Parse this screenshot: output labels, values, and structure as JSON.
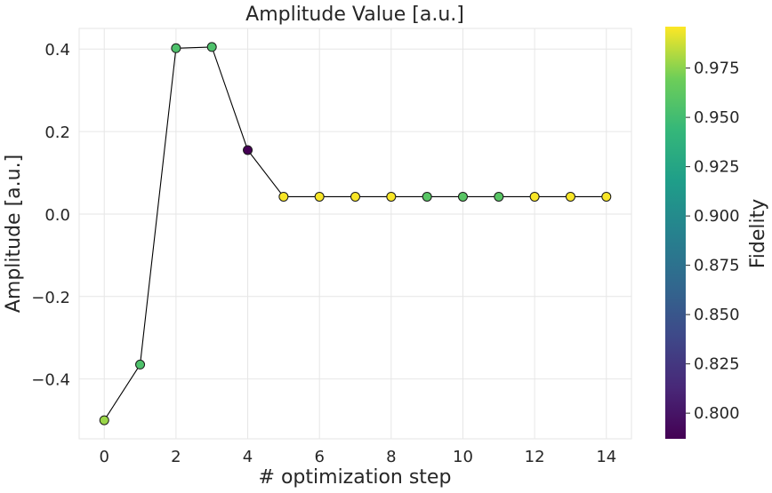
{
  "chart_data": {
    "type": "scatter",
    "title": "Amplitude Value [a.u.]",
    "xlabel": "# optimization step",
    "ylabel": "Amplitude [a.u.]",
    "xlim": [
      -0.7,
      14.7
    ],
    "ylim": [
      -0.545,
      0.45
    ],
    "xticks": [
      0,
      2,
      4,
      6,
      8,
      10,
      12,
      14
    ],
    "xtick_labels": [
      "0",
      "2",
      "4",
      "6",
      "8",
      "10",
      "12",
      "14"
    ],
    "yticks": [
      -0.4,
      -0.2,
      0.0,
      0.2,
      0.4
    ],
    "ytick_labels": [
      "−0.4",
      "−0.2",
      "0.0",
      "0.2",
      "0.4"
    ],
    "grid": true,
    "line_color": "#000000",
    "points": [
      {
        "x": 0,
        "y": -0.5,
        "fidelity": 0.978
      },
      {
        "x": 1,
        "y": -0.365,
        "fidelity": 0.955
      },
      {
        "x": 2,
        "y": 0.402,
        "fidelity": 0.955
      },
      {
        "x": 3,
        "y": 0.405,
        "fidelity": 0.955
      },
      {
        "x": 4,
        "y": 0.155,
        "fidelity": 0.787
      },
      {
        "x": 5,
        "y": 0.042,
        "fidelity": 0.995
      },
      {
        "x": 6,
        "y": 0.042,
        "fidelity": 0.995
      },
      {
        "x": 7,
        "y": 0.042,
        "fidelity": 0.995
      },
      {
        "x": 8,
        "y": 0.042,
        "fidelity": 0.995
      },
      {
        "x": 9,
        "y": 0.042,
        "fidelity": 0.96
      },
      {
        "x": 10,
        "y": 0.042,
        "fidelity": 0.96
      },
      {
        "x": 11,
        "y": 0.042,
        "fidelity": 0.96
      },
      {
        "x": 12,
        "y": 0.042,
        "fidelity": 0.995
      },
      {
        "x": 13,
        "y": 0.042,
        "fidelity": 0.995
      },
      {
        "x": 14,
        "y": 0.042,
        "fidelity": 0.995
      }
    ],
    "colorbar": {
      "label": "Fidelity",
      "colormap": "viridis",
      "range": [
        0.787,
        0.996
      ],
      "ticks": [
        0.8,
        0.825,
        0.85,
        0.875,
        0.9,
        0.925,
        0.95,
        0.975
      ],
      "tick_labels": [
        "0.800",
        "0.825",
        "0.850",
        "0.875",
        "0.900",
        "0.925",
        "0.950",
        "0.975"
      ]
    }
  }
}
